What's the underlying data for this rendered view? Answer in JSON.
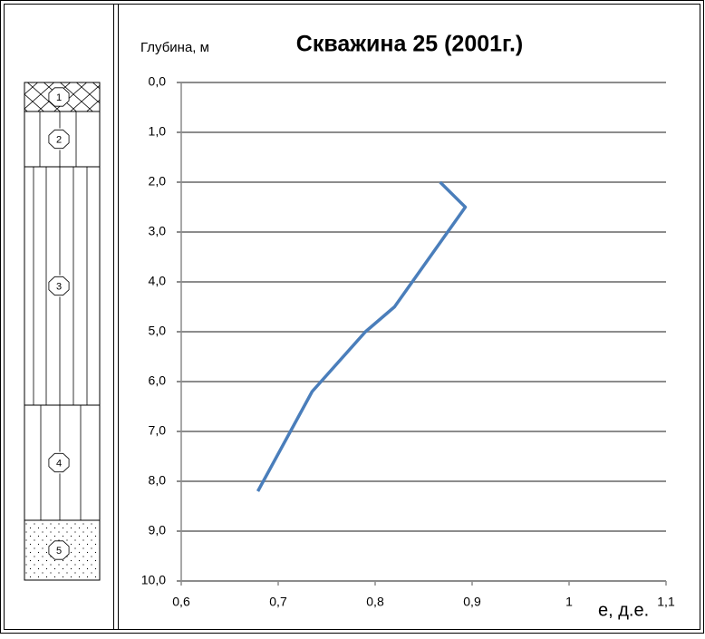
{
  "chart_data": {
    "type": "line",
    "title": "Скважина 25 (2001г.)",
    "y_label": "Глубина, м",
    "x_label": "е, д.е.",
    "series": [
      {
        "color": "#4a7ebb",
        "x": [
          0.867,
          0.893,
          0.82,
          0.79,
          0.735,
          0.679
        ],
        "values": [
          2.0,
          2.5,
          4.5,
          5.0,
          6.2,
          8.2
        ]
      }
    ],
    "xlim": [
      0.6,
      1.1
    ],
    "xticks": [
      {
        "value": 0.6,
        "label": "0,6"
      },
      {
        "value": 0.7,
        "label": "0,7"
      },
      {
        "value": 0.8,
        "label": "0,8"
      },
      {
        "value": 0.9,
        "label": "0,9"
      },
      1,
      {
        "value": 1.1,
        "label": "1,1"
      }
    ],
    "ylim": [
      0,
      10
    ],
    "y_inverted": true,
    "yticks": [
      {
        "value": 0,
        "label": "0,0"
      },
      {
        "value": 1,
        "label": "1,0"
      },
      {
        "value": 2,
        "label": "2,0"
      },
      {
        "value": 3,
        "label": "3,0"
      },
      {
        "value": 4,
        "label": "4,0"
      },
      {
        "value": 5,
        "label": "5,0"
      },
      {
        "value": 6,
        "label": "6,0"
      },
      {
        "value": 7,
        "label": "7,0"
      },
      {
        "value": 8,
        "label": "8,0"
      },
      {
        "value": 9,
        "label": "9,0"
      },
      {
        "value": 10,
        "label": "10,0"
      }
    ],
    "grid": true
  },
  "column": {
    "layers": [
      "1",
      "2",
      "3",
      "4",
      "5"
    ]
  }
}
